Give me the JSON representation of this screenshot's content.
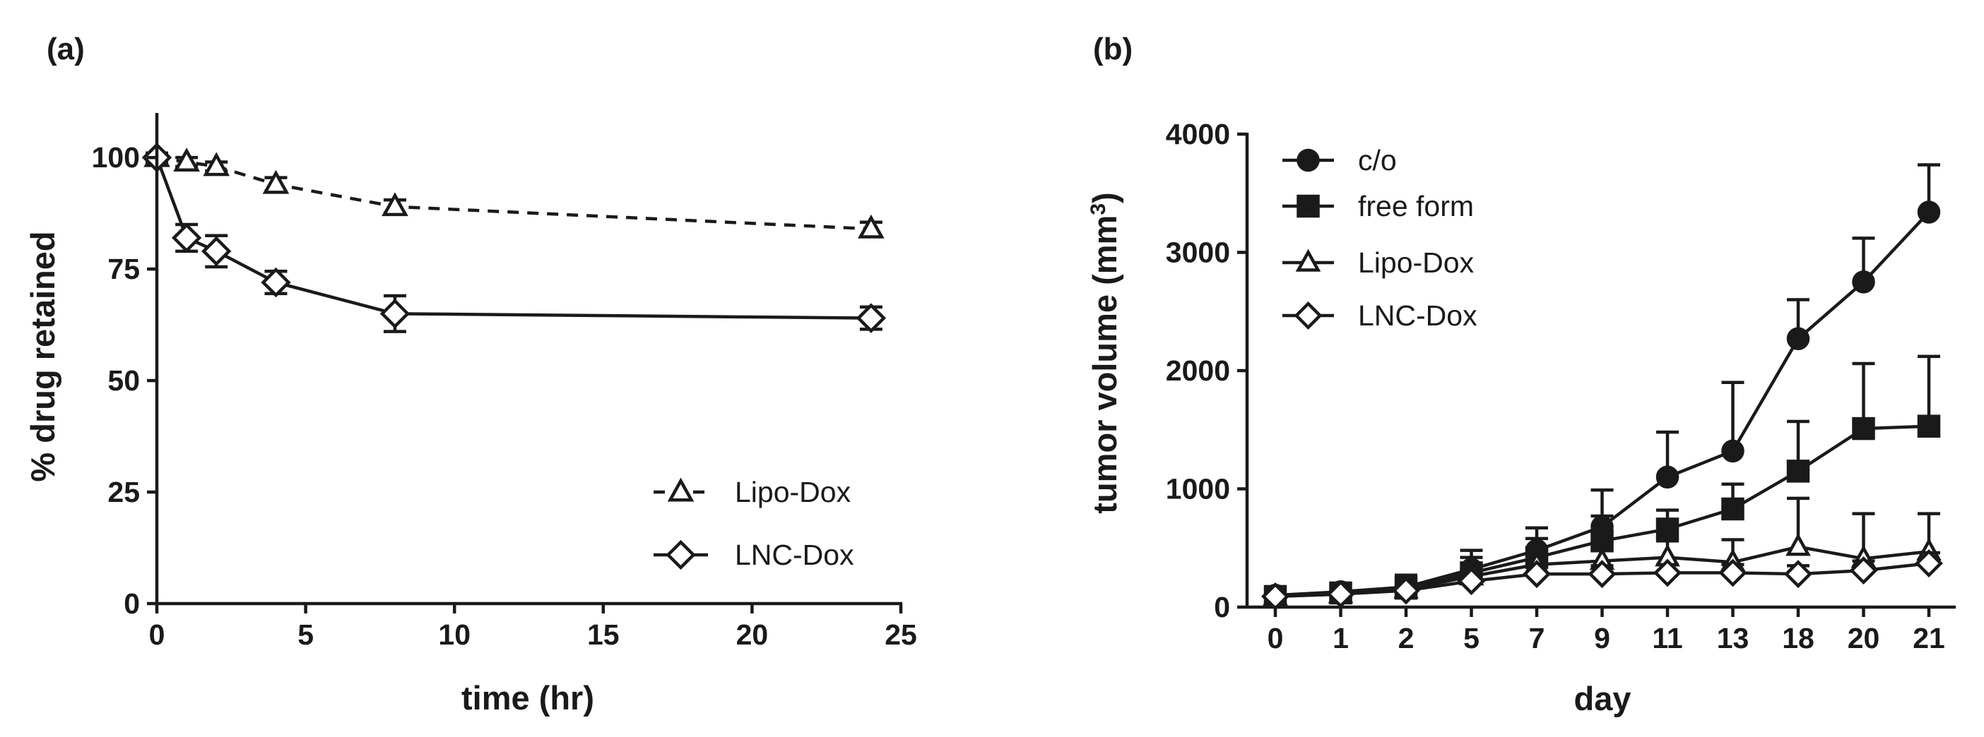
{
  "chart_data": [
    {
      "panel": "(a)",
      "type": "line",
      "xlabel": "time (hr)",
      "ylabel": "% drug retained",
      "xlim": [
        0,
        25
      ],
      "ylim": [
        0,
        110
      ],
      "xticks": [
        0,
        5,
        10,
        15,
        20,
        25
      ],
      "yticks": [
        0,
        25,
        50,
        75,
        100
      ],
      "grid": false,
      "legend_position": "bottom-right",
      "series": [
        {
          "name": "Lipo-Dox",
          "marker": "open-triangle",
          "line": "dashed",
          "x": [
            0,
            1,
            2,
            4,
            8,
            24
          ],
          "y": [
            100,
            99,
            98,
            94,
            89,
            84
          ],
          "error": [
            1,
            1,
            1,
            1.5,
            1.5,
            1.5
          ]
        },
        {
          "name": "LNC-Dox",
          "marker": "open-diamond",
          "line": "solid",
          "x": [
            0,
            1,
            2,
            4,
            8,
            24
          ],
          "y": [
            100,
            82,
            79,
            72,
            65,
            64
          ],
          "error": [
            1,
            3,
            3.5,
            2.5,
            4,
            2.5
          ]
        }
      ]
    },
    {
      "panel": "(b)",
      "type": "line",
      "xlabel": "day",
      "ylabel": "tumor volume (mm",
      "ylabel_sup": "3",
      "ylabel_end": ")",
      "categories": [
        "0",
        "1",
        "2",
        "5",
        "7",
        "9",
        "11",
        "13",
        "18",
        "20",
        "21"
      ],
      "ylim": [
        0,
        4000
      ],
      "yticks": [
        0,
        1000,
        2000,
        3000,
        4000
      ],
      "grid": false,
      "legend_position": "top-left",
      "series": [
        {
          "name": "c/o",
          "marker": "filled-circle",
          "values": [
            100,
            130,
            170,
            320,
            480,
            680,
            1100,
            1320,
            2270,
            2750,
            3340
          ],
          "error": [
            30,
            40,
            100,
            160,
            190,
            310,
            380,
            580,
            330,
            370,
            400
          ]
        },
        {
          "name": "free form",
          "marker": "filled-square",
          "values": [
            90,
            120,
            160,
            290,
            420,
            560,
            660,
            830,
            1150,
            1510,
            1530
          ],
          "error": [
            25,
            35,
            80,
            130,
            160,
            210,
            160,
            210,
            420,
            550,
            590
          ]
        },
        {
          "name": "Lipo-Dox",
          "marker": "open-triangle",
          "values": [
            90,
            110,
            150,
            260,
            360,
            390,
            420,
            380,
            510,
            410,
            470
          ],
          "error": [
            20,
            30,
            60,
            80,
            110,
            120,
            140,
            190,
            410,
            380,
            320
          ]
        },
        {
          "name": "LNC-Dox",
          "marker": "open-diamond",
          "values": [
            90,
            110,
            140,
            220,
            280,
            280,
            290,
            290,
            280,
            310,
            370
          ],
          "error": [
            20,
            25,
            40,
            50,
            60,
            70,
            70,
            70,
            70,
            80,
            90
          ]
        }
      ]
    }
  ]
}
